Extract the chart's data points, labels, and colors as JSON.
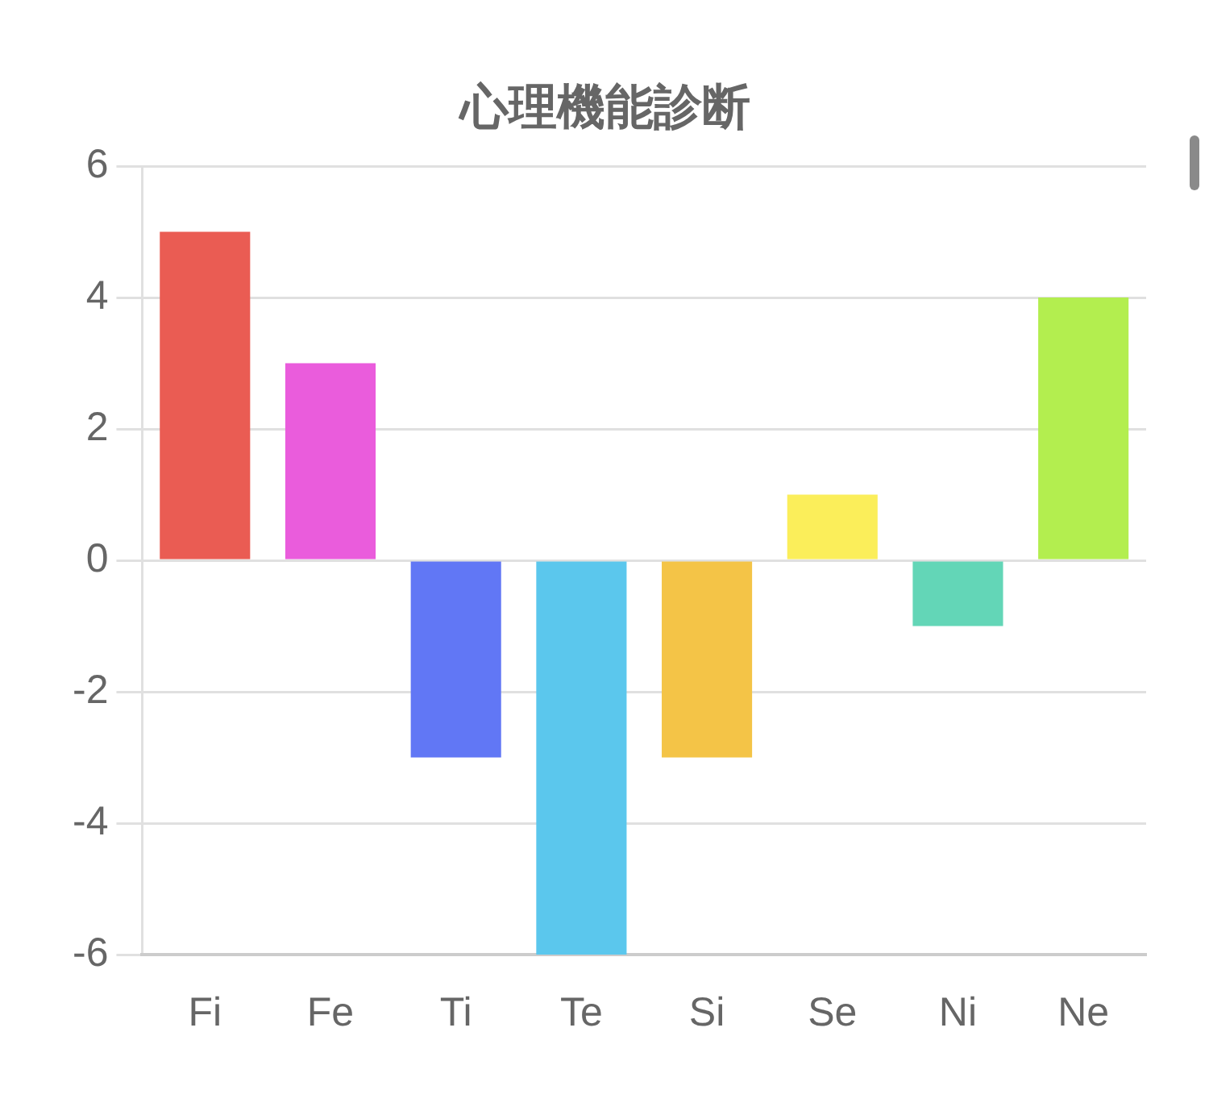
{
  "chart_data": {
    "type": "bar",
    "title": "心理機能診断",
    "categories": [
      "Fi",
      "Fe",
      "Ti",
      "Te",
      "Si",
      "Se",
      "Ni",
      "Ne"
    ],
    "values": [
      5,
      3,
      -3,
      -6,
      -3,
      1,
      -1,
      4
    ],
    "colors": [
      "#ea5c53",
      "#ea5cdc",
      "#6177f5",
      "#5bc7ed",
      "#f4c447",
      "#fbee5a",
      "#63d6b7",
      "#b3ee4f"
    ],
    "ylim": [
      -6,
      6
    ],
    "yticks": [
      -6,
      -4,
      -2,
      0,
      2,
      4,
      6
    ],
    "grid": "y"
  }
}
